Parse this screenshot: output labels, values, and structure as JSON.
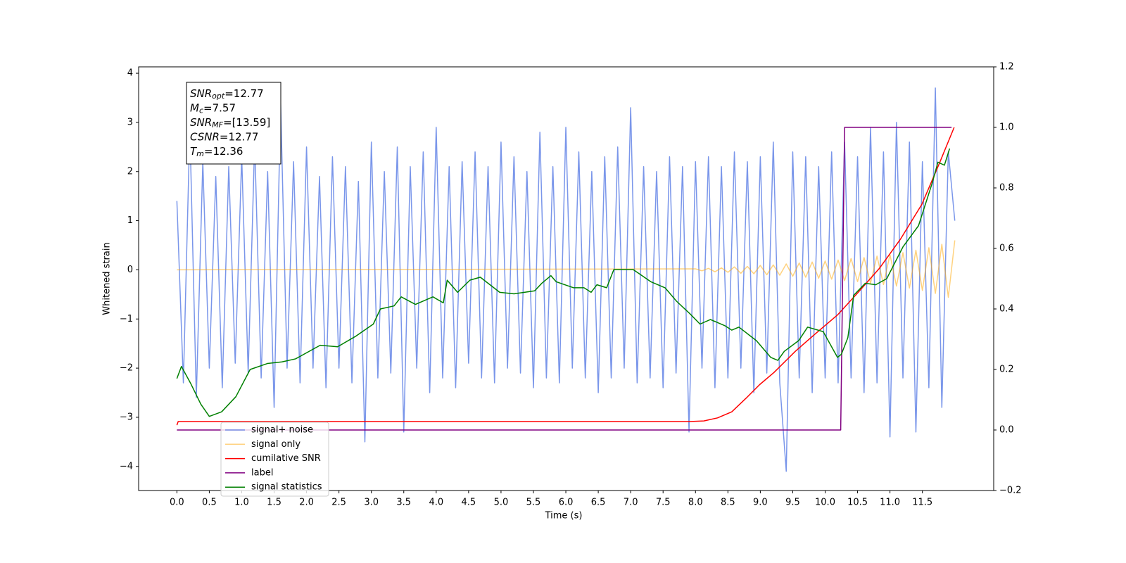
{
  "chart_data": {
    "type": "line",
    "xlabel": "Time (s)",
    "ylabel": "Whitened strain",
    "xlim": [
      -0.59,
      12.6
    ],
    "ylim": [
      -4.49,
      4.13
    ],
    "y2lim": [
      -0.2,
      1.2
    ],
    "xticks": [
      {
        "value": 0,
        "label": "0.0"
      },
      0.5,
      {
        "value": 1,
        "label": "1.0"
      },
      1.5,
      {
        "value": 2,
        "label": "2.0"
      },
      2.5,
      {
        "value": 3,
        "label": "3.0"
      },
      3.5,
      {
        "value": 4,
        "label": "4.0"
      },
      4.5,
      {
        "value": 5,
        "label": "5.0"
      },
      5.5,
      {
        "value": 6,
        "label": "6.0"
      },
      6.5,
      {
        "value": 7,
        "label": "7.0"
      },
      7.5,
      {
        "value": 8,
        "label": "8.0"
      },
      8.5,
      {
        "value": 9,
        "label": "9.0"
      },
      9.5,
      {
        "value": 10,
        "label": "10.0"
      },
      10.5,
      {
        "value": 11,
        "label": "11.0"
      },
      11.5
    ],
    "yticks": [
      {
        "value": -4,
        "label": "−4"
      },
      {
        "value": -3,
        "label": "−3"
      },
      {
        "value": -2,
        "label": "−2"
      },
      {
        "value": -1,
        "label": "−1"
      },
      0,
      1,
      2,
      3,
      4
    ],
    "y2ticks": [
      {
        "value": -0.2,
        "label": "−0.2"
      },
      {
        "value": 0,
        "label": "0.0"
      },
      0.2,
      0.4,
      0.6,
      0.8,
      {
        "value": 1,
        "label": "1.0"
      },
      1.2
    ],
    "legend_loc": "lower left",
    "x": [
      0,
      0.1,
      0.2,
      0.3,
      0.4,
      0.5,
      0.6,
      0.7,
      0.8,
      0.9,
      1,
      1.1,
      1.2,
      1.3,
      1.4,
      1.5,
      1.6,
      1.7,
      1.8,
      1.9,
      2,
      2.1,
      2.2,
      2.3,
      2.4,
      2.5,
      2.6,
      2.7,
      2.8,
      2.9,
      3,
      3.1,
      3.2,
      3.3,
      3.4,
      3.5,
      3.6,
      3.7,
      3.8,
      3.9,
      4,
      4.1,
      4.2,
      4.3,
      4.4,
      4.5,
      4.6,
      4.7,
      4.8,
      4.9,
      5,
      5.1,
      5.2,
      5.3,
      5.4,
      5.5,
      5.6,
      5.7,
      5.8,
      5.9,
      6,
      6.1,
      6.2,
      6.3,
      6.4,
      6.5,
      6.6,
      6.7,
      6.8,
      6.9,
      7,
      7.1,
      7.2,
      7.3,
      7.4,
      7.5,
      7.6,
      7.7,
      7.8,
      7.9,
      8,
      8.1,
      8.2,
      8.3,
      8.4,
      8.5,
      8.6,
      8.7,
      8.8,
      8.9,
      9,
      9.1,
      9.2,
      9.3,
      9.4,
      9.5,
      9.6,
      9.7,
      9.8,
      9.9,
      10,
      10.1,
      10.2,
      10.3,
      10.4,
      10.5,
      10.6,
      10.7,
      10.8,
      10.9,
      11,
      11.1,
      11.2,
      11.3,
      11.4,
      11.5,
      11.6,
      11.7,
      11.8,
      11.9,
      12
    ],
    "series": [
      {
        "name": "signal+ noise",
        "color": "#4169e1",
        "alpha": 0.7,
        "values": [
          1.4,
          -2.3,
          2.9,
          -2.6,
          2.2,
          -2.0,
          1.9,
          -2.4,
          2.1,
          -1.9,
          2.3,
          -2.1,
          2.6,
          -2.2,
          2.0,
          -2.8,
          3.4,
          -2.0,
          2.2,
          -2.3,
          2.5,
          -2.0,
          1.9,
          -2.4,
          2.3,
          -2.0,
          2.1,
          -2.3,
          1.8,
          -3.5,
          2.6,
          -2.2,
          2.0,
          -2.1,
          2.5,
          -3.3,
          2.1,
          -2.0,
          2.4,
          -2.5,
          2.9,
          -2.2,
          2.1,
          -2.4,
          2.2,
          -1.9,
          2.4,
          -2.2,
          2.1,
          -2.3,
          2.6,
          -2.0,
          2.3,
          -2.1,
          2.0,
          -2.4,
          2.8,
          -2.2,
          2.1,
          -2.3,
          2.9,
          -2.0,
          2.4,
          -2.2,
          2.0,
          -2.5,
          2.3,
          -2.2,
          2.5,
          -2.0,
          3.3,
          -2.3,
          2.1,
          -2.2,
          2.0,
          -2.4,
          2.3,
          -2.1,
          2.1,
          -3.3,
          2.2,
          -2.0,
          2.3,
          -2.4,
          2.1,
          -2.2,
          2.4,
          -2.0,
          2.2,
          -2.5,
          2.3,
          -2.1,
          2.6,
          -2.3,
          -4.1,
          2.4,
          -2.2,
          2.3,
          -2.5,
          2.1,
          -2.2,
          2.4,
          -2.3,
          2.6,
          -2.2,
          2.3,
          -2.5,
          2.9,
          -2.3,
          2.4,
          -3.4,
          3.0,
          -2.2,
          2.6,
          -3.3,
          2.2,
          -2.4,
          3.7,
          -2.8,
          2.4,
          1.0
        ]
      },
      {
        "name": "signal only",
        "color": "orange",
        "alpha": 0.5,
        "x": [
          0,
          8,
          8.1,
          8.2,
          8.3,
          8.4,
          8.5,
          8.6,
          8.7,
          8.8,
          8.9,
          9,
          9.1,
          9.2,
          9.3,
          9.4,
          9.5,
          9.6,
          9.7,
          9.8,
          9.9,
          10,
          10.1,
          10.2,
          10.3,
          10.4,
          10.5,
          10.6,
          10.7,
          10.8,
          10.9,
          11,
          11.1,
          11.2,
          11.3,
          11.4,
          11.5,
          11.6,
          11.7,
          11.8,
          11.9,
          12
        ],
        "values": [
          0,
          0.02,
          -0.02,
          0.03,
          -0.04,
          0.04,
          -0.05,
          0.06,
          -0.07,
          0.07,
          -0.08,
          0.09,
          -0.1,
          0.1,
          -0.11,
          0.12,
          -0.13,
          0.14,
          -0.15,
          0.16,
          -0.17,
          0.18,
          -0.19,
          0.2,
          -0.22,
          0.23,
          -0.24,
          0.25,
          -0.27,
          0.28,
          -0.3,
          0.31,
          -0.33,
          0.35,
          -0.37,
          0.4,
          -0.42,
          0.45,
          -0.48,
          0.52,
          -0.56,
          0.6
        ]
      },
      {
        "name": "cumilative SNR",
        "color": "red",
        "axis": "y2",
        "x": [
          0,
          0.02,
          7.91,
          8.13,
          8.34,
          8.56,
          8.78,
          8.99,
          9.21,
          9.54,
          9.86,
          10.19,
          10.51,
          10.84,
          11.16,
          11.49,
          11.76,
          11.99
        ],
        "values": [
          0.016,
          0.028,
          0.028,
          0.03,
          0.04,
          0.06,
          0.105,
          0.15,
          0.19,
          0.26,
          0.32,
          0.38,
          0.455,
          0.535,
          0.63,
          0.745,
          0.88,
          1.0
        ]
      },
      {
        "name": "label",
        "color": "purple",
        "axis": "y2",
        "x": [
          0,
          10.24,
          10.3,
          11.95
        ],
        "values": [
          0,
          0,
          1,
          1
        ]
      },
      {
        "name": "signal statistics",
        "color": "green",
        "axis": "y2",
        "x": [
          0,
          0.07,
          0.21,
          0.37,
          0.5,
          0.69,
          0.91,
          1.13,
          1.4,
          1.62,
          1.83,
          2.21,
          2.48,
          2.76,
          3.03,
          3.14,
          3.35,
          3.46,
          3.68,
          3.95,
          4.11,
          4.17,
          4.33,
          4.52,
          4.68,
          4.98,
          5.2,
          5.52,
          5.63,
          5.77,
          5.85,
          6.12,
          6.28,
          6.39,
          6.48,
          6.63,
          6.74,
          6.91,
          7.04,
          7.31,
          7.53,
          7.71,
          7.91,
          8.07,
          8.23,
          8.45,
          8.56,
          8.67,
          8.94,
          9.16,
          9.27,
          9.37,
          9.59,
          9.73,
          9.97,
          10.19,
          10.25,
          10.35,
          10.44,
          10.62,
          10.78,
          10.95,
          11.2,
          11.44,
          11.65,
          11.74,
          11.84,
          11.92
        ],
        "values": [
          0.17,
          0.21,
          0.155,
          0.085,
          0.045,
          0.06,
          0.11,
          0.2,
          0.22,
          0.225,
          0.235,
          0.28,
          0.275,
          0.31,
          0.35,
          0.4,
          0.41,
          0.44,
          0.415,
          0.44,
          0.42,
          0.495,
          0.455,
          0.495,
          0.505,
          0.455,
          0.45,
          0.46,
          0.485,
          0.51,
          0.49,
          0.47,
          0.47,
          0.455,
          0.48,
          0.47,
          0.53,
          0.53,
          0.53,
          0.49,
          0.47,
          0.425,
          0.385,
          0.35,
          0.365,
          0.345,
          0.33,
          0.34,
          0.295,
          0.24,
          0.23,
          0.26,
          0.295,
          0.34,
          0.325,
          0.24,
          0.25,
          0.305,
          0.445,
          0.485,
          0.48,
          0.5,
          0.605,
          0.675,
          0.815,
          0.885,
          0.875,
          0.93
        ]
      }
    ],
    "annotations": [
      {
        "symbol": "SNR",
        "subscript": "opt",
        "text": "=12.77"
      },
      {
        "symbol": "M",
        "subscript": "c",
        "text": "=7.57"
      },
      {
        "symbol": "SNR",
        "subscript": "MF",
        "text": "=[13.59]"
      },
      {
        "symbol": "CSNR",
        "text": "=12.77"
      },
      {
        "symbol": "T",
        "subscript": "m",
        "text": "=12.36"
      }
    ]
  }
}
